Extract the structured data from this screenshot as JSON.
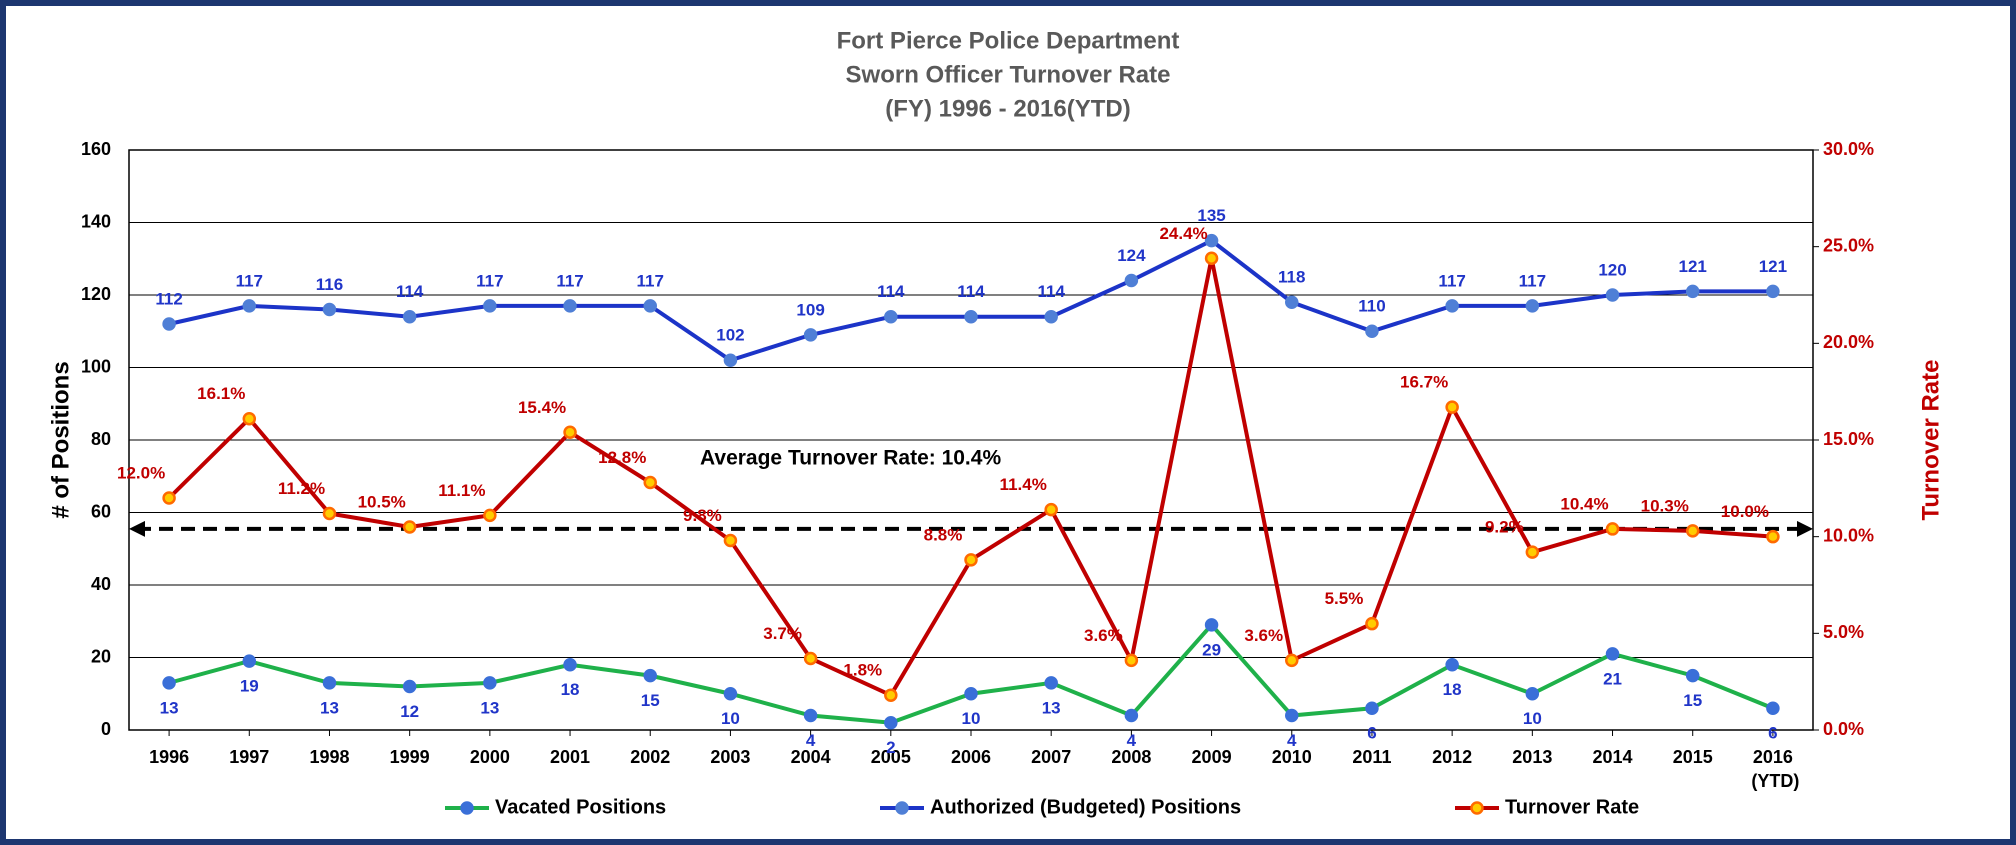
{
  "chart_data": {
    "type": "line",
    "title": [
      "Fort Pierce Police Department",
      "Sworn Officer Turnover Rate",
      "(FY) 1996 - 2016(YTD)"
    ],
    "y_label": "# of Positions",
    "y2_label": "Turnover Rate",
    "categories": [
      "1996",
      "1997",
      "1998",
      "1999",
      "2000",
      "2001",
      "2002",
      "2003",
      "2004",
      "2005",
      "2006",
      "2007",
      "2008",
      "2009",
      "2010",
      "2011",
      "2012",
      "2013",
      "2014",
      "2015",
      "2016 (YTD)"
    ],
    "series": [
      {
        "name": "Vacated Positions",
        "color": "#1fb14a",
        "marker_color": "#3a6fd8",
        "label_color": "#2035c8",
        "label_position": "below",
        "values": [
          13,
          19,
          13,
          12,
          13,
          18,
          15,
          10,
          4,
          2,
          10,
          13,
          4,
          29,
          4,
          6,
          18,
          10,
          21,
          15,
          6
        ]
      },
      {
        "name": "Authorized (Budgeted) Positions",
        "color": "#1c34c8",
        "marker_color": "#4f7fd6",
        "label_color": "#2035c8",
        "label_position": "above",
        "values": [
          112,
          117,
          116,
          114,
          117,
          117,
          117,
          102,
          109,
          114,
          114,
          114,
          124,
          135,
          118,
          110,
          117,
          117,
          120,
          121,
          121
        ]
      },
      {
        "name": "Turnover Rate",
        "color": "#c00000",
        "marker_color": "#ffcc00",
        "label_color": "#c00000",
        "label_position": "above",
        "axis": "y2",
        "values": [
          12.0,
          16.1,
          11.2,
          10.5,
          11.1,
          15.4,
          12.8,
          9.8,
          3.7,
          1.8,
          8.8,
          11.4,
          3.6,
          24.4,
          3.6,
          5.5,
          16.7,
          9.2,
          10.4,
          10.3,
          10.0
        ],
        "value_labels": [
          "12.0%",
          "16.1%",
          "11.2%",
          "10.5%",
          "11.1%",
          "15.4%",
          "12.8%",
          "9.8%",
          "3.7%",
          "1.8%",
          "8.8%",
          "11.4%",
          "3.6%",
          "24.4%",
          "3.6%",
          "5.5%",
          "16.7%",
          "9.2%",
          "10.4%",
          "10.3%",
          "10.0%"
        ]
      }
    ],
    "average": {
      "value": 10.4,
      "label": "Average Turnover Rate:  10.4%",
      "axis": "y2"
    },
    "ylim": [
      0,
      160
    ],
    "yticks": [
      0,
      20,
      40,
      60,
      80,
      100,
      120,
      140,
      160
    ],
    "y2lim": [
      0,
      30
    ],
    "y2ticks": [
      {
        "value": 0,
        "label": "0.0%"
      },
      {
        "value": 5,
        "label": "5.0%"
      },
      {
        "value": 10,
        "label": "10.0%"
      },
      {
        "value": 15,
        "label": "15.0%"
      },
      {
        "value": 20,
        "label": "20.0%"
      },
      {
        "value": 25,
        "label": "25.0%"
      },
      {
        "value": 30,
        "label": "30.0%"
      }
    ],
    "grid": true,
    "legend": "bottom"
  }
}
